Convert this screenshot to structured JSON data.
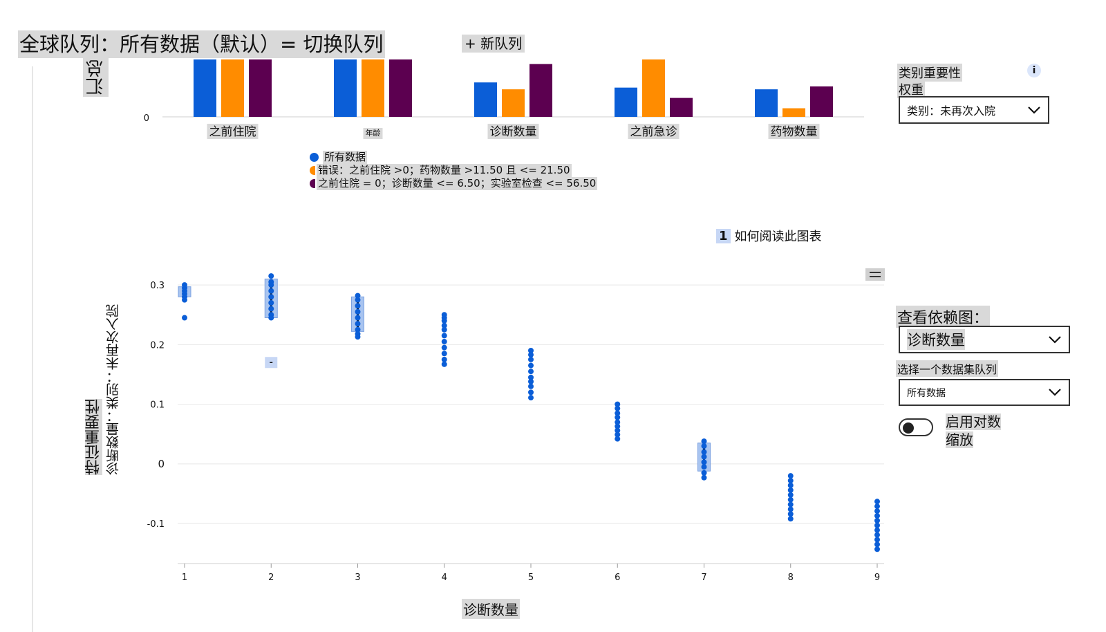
{
  "header": {
    "cohort_title": "全球队列：所有数据（默认）= 切换队列",
    "new_cohort_label": "+ 新队列"
  },
  "summary_chart": {
    "ylabel": "汇总",
    "legend": [
      {
        "label": "所有数据",
        "color": "#0b5ed7"
      },
      {
        "label": "错误：之前住院 >0；药物数量 >11.50 且 <= 21.50",
        "color": "#ff8c00"
      },
      {
        "label": "之前住院 = 0；诊断数量 <= 6.50；实验室检查 <= 56.50",
        "color": "#5c0050"
      }
    ]
  },
  "side_panel": {
    "importance_label": "类别重要性",
    "importance_info": "i",
    "weight_label": "权重",
    "weight_value": "类别：未再次入院",
    "dependence_label": "查看依赖图：",
    "feature_value": "诊断数量",
    "cohort_label": "选择一个数据集队列",
    "cohort_value": "所有数据",
    "log_label_line1": "启用对数",
    "log_label_line2": "缩放",
    "chevron_icon": "chevron-down-icon"
  },
  "dependence_chart": {
    "how_to_read_badge": "1",
    "how_to_read_label": "如何阅读此图表",
    "ylabel_line1": "特征重要性",
    "ylabel_line2": "诊断数量：类别：未再次入院",
    "xlabel": "诊断数量"
  },
  "chart_data": [
    {
      "type": "bar",
      "categories": [
        "之前住院",
        "年龄",
        "诊断数量",
        "之前急诊",
        "药物数量"
      ],
      "series": [
        {
          "name": "所有数据",
          "color": "#0b5ed7",
          "values": [
            1.0,
            1.0,
            0.6,
            0.51,
            0.48
          ]
        },
        {
          "name": "错误：之前住院 >0；药物数量 >11.50 且 <= 21.50",
          "color": "#ff8c00",
          "values": [
            1.0,
            1.0,
            0.48,
            1.0,
            0.15
          ]
        },
        {
          "name": "之前住院 = 0；诊断数量 <= 6.50；实验室检查 <= 56.50",
          "color": "#5c0050",
          "values": [
            1.0,
            1.0,
            0.92,
            0.33,
            0.53
          ]
        }
      ],
      "yticks": [
        0
      ],
      "ylabel": "汇总",
      "ylim": [
        0,
        1
      ]
    },
    {
      "type": "scatter",
      "xlabel": "诊断数量",
      "ylabel": "特征重要性",
      "xticks": [
        1,
        2,
        3,
        4,
        5,
        6,
        7,
        8,
        9
      ],
      "yticks": [
        -0.1,
        0,
        0.1,
        0.2,
        0.3
      ],
      "xlim": [
        1,
        9
      ],
      "ylim": [
        -0.167,
        0.314
      ],
      "color": "#0b5ed7",
      "grid": true,
      "points": [
        {
          "x": 1,
          "y": [
            0.3,
            0.295,
            0.29,
            0.285,
            0.28,
            0.275,
            0.245
          ]
        },
        {
          "x": 2,
          "y": [
            0.315,
            0.305,
            0.3,
            0.29,
            0.28,
            0.27,
            0.26,
            0.25,
            0.245
          ]
        },
        {
          "x": 3,
          "y": [
            0.282,
            0.275,
            0.265,
            0.255,
            0.245,
            0.235,
            0.225,
            0.218,
            0.213
          ]
        },
        {
          "x": 4,
          "y": [
            0.25,
            0.245,
            0.24,
            0.232,
            0.225,
            0.215,
            0.205,
            0.195,
            0.185,
            0.175,
            0.167
          ]
        },
        {
          "x": 5,
          "y": [
            0.19,
            0.183,
            0.175,
            0.165,
            0.155,
            0.145,
            0.138,
            0.13,
            0.12,
            0.111
          ]
        },
        {
          "x": 6,
          "y": [
            0.1,
            0.093,
            0.085,
            0.078,
            0.07,
            0.063,
            0.056,
            0.049,
            0.042
          ]
        },
        {
          "x": 7,
          "y": [
            0.038,
            0.03,
            0.02,
            0.012,
            0.003,
            -0.005,
            -0.015,
            -0.023
          ]
        },
        {
          "x": 8,
          "y": [
            -0.02,
            -0.028,
            -0.036,
            -0.044,
            -0.052,
            -0.06,
            -0.068,
            -0.076,
            -0.084,
            -0.092
          ]
        },
        {
          "x": 9,
          "y": [
            -0.063,
            -0.071,
            -0.079,
            -0.087,
            -0.095,
            -0.103,
            -0.111,
            -0.119,
            -0.127,
            -0.135,
            -0.143
          ]
        }
      ],
      "boxes": [
        {
          "x": 1,
          "q1": 0.28,
          "q3": 0.297,
          "median": 0.288
        },
        {
          "x": 2,
          "q1": 0.245,
          "q3": 0.31,
          "median": 0.278,
          "whisker_low": 0.17
        },
        {
          "x": 3,
          "q1": 0.222,
          "q3": 0.28,
          "median": 0.251
        },
        {
          "x": 7,
          "q1": -0.012,
          "q3": 0.035,
          "median": 0.012
        }
      ]
    }
  ]
}
